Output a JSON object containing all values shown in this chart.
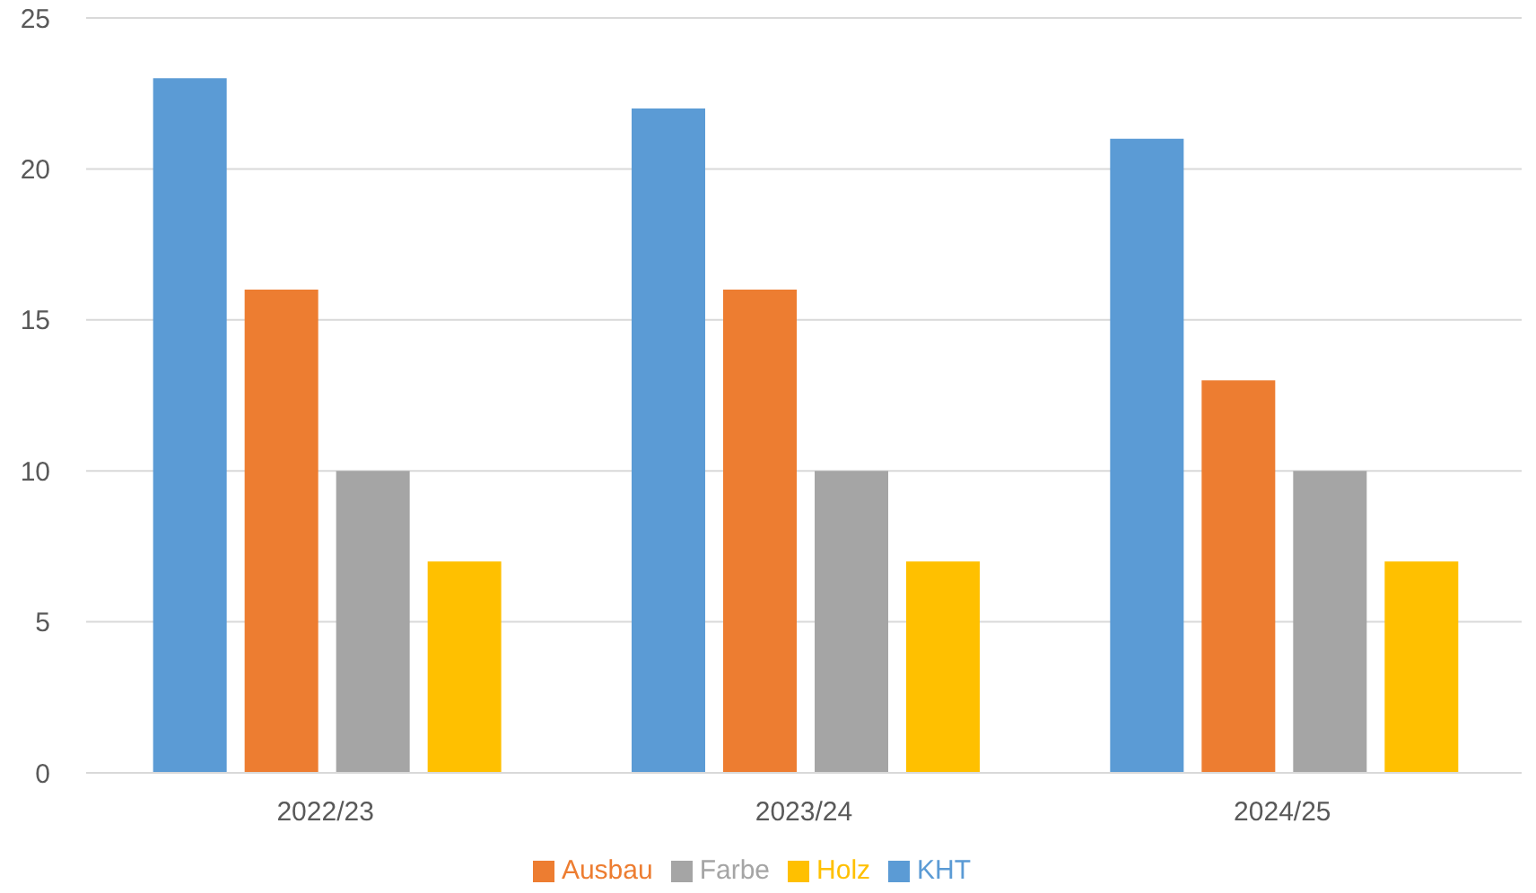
{
  "chart_data": {
    "type": "bar",
    "categories": [
      "2022/23",
      "2023/24",
      "2024/25"
    ],
    "series": [
      {
        "name": "KHT",
        "color": "#5b9bd5",
        "values": [
          23,
          22,
          21
        ]
      },
      {
        "name": "Ausbau",
        "color": "#ed7d31",
        "values": [
          16,
          16,
          13
        ]
      },
      {
        "name": "Farbe",
        "color": "#a5a5a5",
        "values": [
          10,
          10,
          10
        ]
      },
      {
        "name": "Holz",
        "color": "#ffc000",
        "values": [
          7,
          7,
          7
        ]
      }
    ],
    "ylim": [
      0,
      25
    ],
    "yticks": [
      0,
      5,
      10,
      15,
      20,
      25
    ],
    "grid": "y",
    "legend": "bottom"
  }
}
